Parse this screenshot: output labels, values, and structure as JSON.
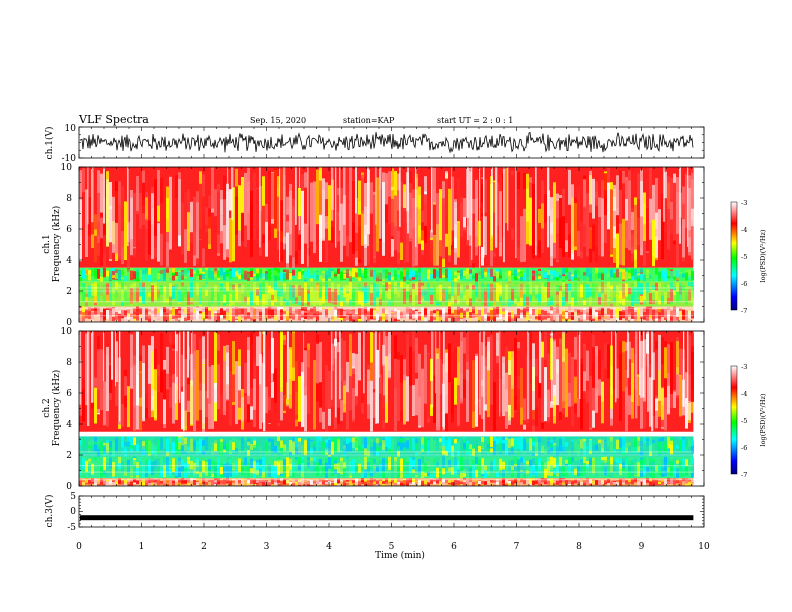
{
  "header": {
    "title": "VLF Spectra",
    "date": "Sep. 15, 2020",
    "station": "station=KAP",
    "start_ut": "start UT =  2 : 0  : 1"
  },
  "chart_data": [
    {
      "type": "line",
      "panel": "ch1-waveform",
      "ylabel": "ch.1(V)",
      "ylim": [
        -10,
        10
      ],
      "y_tick_labels": [
        "10",
        "-10"
      ],
      "xlim": [
        0,
        10
      ],
      "series": [
        {
          "values_range": [
            -7,
            7
          ],
          "approx_mean": 0
        }
      ],
      "grid": false
    },
    {
      "type": "heatmap",
      "panel": "ch1-spectrogram",
      "ylabel_lines": [
        "ch.1",
        "Frequency  (kHz)"
      ],
      "ylim": [
        0,
        10
      ],
      "y_ticks": [
        0,
        2,
        4,
        6,
        8,
        10
      ],
      "xlim": [
        0,
        10
      ],
      "data_end_min": 9.83,
      "colorbar": {
        "label": "log(PSD)(V²/Hz)",
        "range": [
          -7,
          -3
        ],
        "ticks": [
          -3,
          -4,
          -5,
          -6,
          -7
        ],
        "colors": [
          "#000080",
          "#0000ff",
          "#00ffff",
          "#00ff00",
          "#ffff00",
          "#ff0000",
          "#ffffff"
        ]
      },
      "bands_khz": [
        {
          "from": 3.5,
          "to": 10,
          "level": "high",
          "dominant": "#ff2020"
        },
        {
          "from": 2.6,
          "to": 3.5,
          "level": "mixed",
          "dominant": "#40ff60"
        },
        {
          "from": 1.0,
          "to": 2.6,
          "level": "mid",
          "dominant": "#90ee40"
        },
        {
          "from": 0.0,
          "to": 1.0,
          "level": "high",
          "dominant": "#ffd0b0"
        }
      ]
    },
    {
      "type": "heatmap",
      "panel": "ch2-spectrogram",
      "ylabel_lines": [
        "ch.2",
        "Frequency  (kHz)"
      ],
      "ylim": [
        0,
        10
      ],
      "y_ticks": [
        0,
        2,
        4,
        6,
        8,
        10
      ],
      "xlim": [
        0,
        10
      ],
      "data_end_min": 9.83,
      "colorbar": {
        "label": "log(PSD)(V²/Hz)",
        "range": [
          -7,
          -3
        ],
        "ticks": [
          -3,
          -4,
          -5,
          -6,
          -7
        ],
        "colors": [
          "#000080",
          "#0000ff",
          "#00ffff",
          "#00ff00",
          "#ffff00",
          "#ff0000",
          "#ffffff"
        ]
      },
      "bands_khz": [
        {
          "from": 3.5,
          "to": 10,
          "level": "high",
          "dominant": "#ff2020"
        },
        {
          "from": 1.9,
          "to": 3.2,
          "level": "low",
          "dominant": "#20e0b0"
        },
        {
          "from": 0.5,
          "to": 1.9,
          "level": "low",
          "dominant": "#30f090"
        },
        {
          "from": 0.0,
          "to": 0.5,
          "level": "high",
          "dominant": "#ffb060"
        }
      ]
    },
    {
      "type": "line",
      "panel": "ch3-waveform",
      "ylabel": "ch.3(V)",
      "ylim": [
        -5,
        5
      ],
      "y_tick_labels": [
        "5",
        "0",
        "-5"
      ],
      "xlim": [
        0,
        10
      ],
      "x_ticks": [
        0,
        1,
        2,
        3,
        4,
        5,
        6,
        7,
        8,
        9,
        10
      ],
      "xlabel": "Time  (min)",
      "series": [
        {
          "values_range": [
            -2.8,
            -1.2
          ],
          "approx_mean": -2
        }
      ]
    }
  ]
}
